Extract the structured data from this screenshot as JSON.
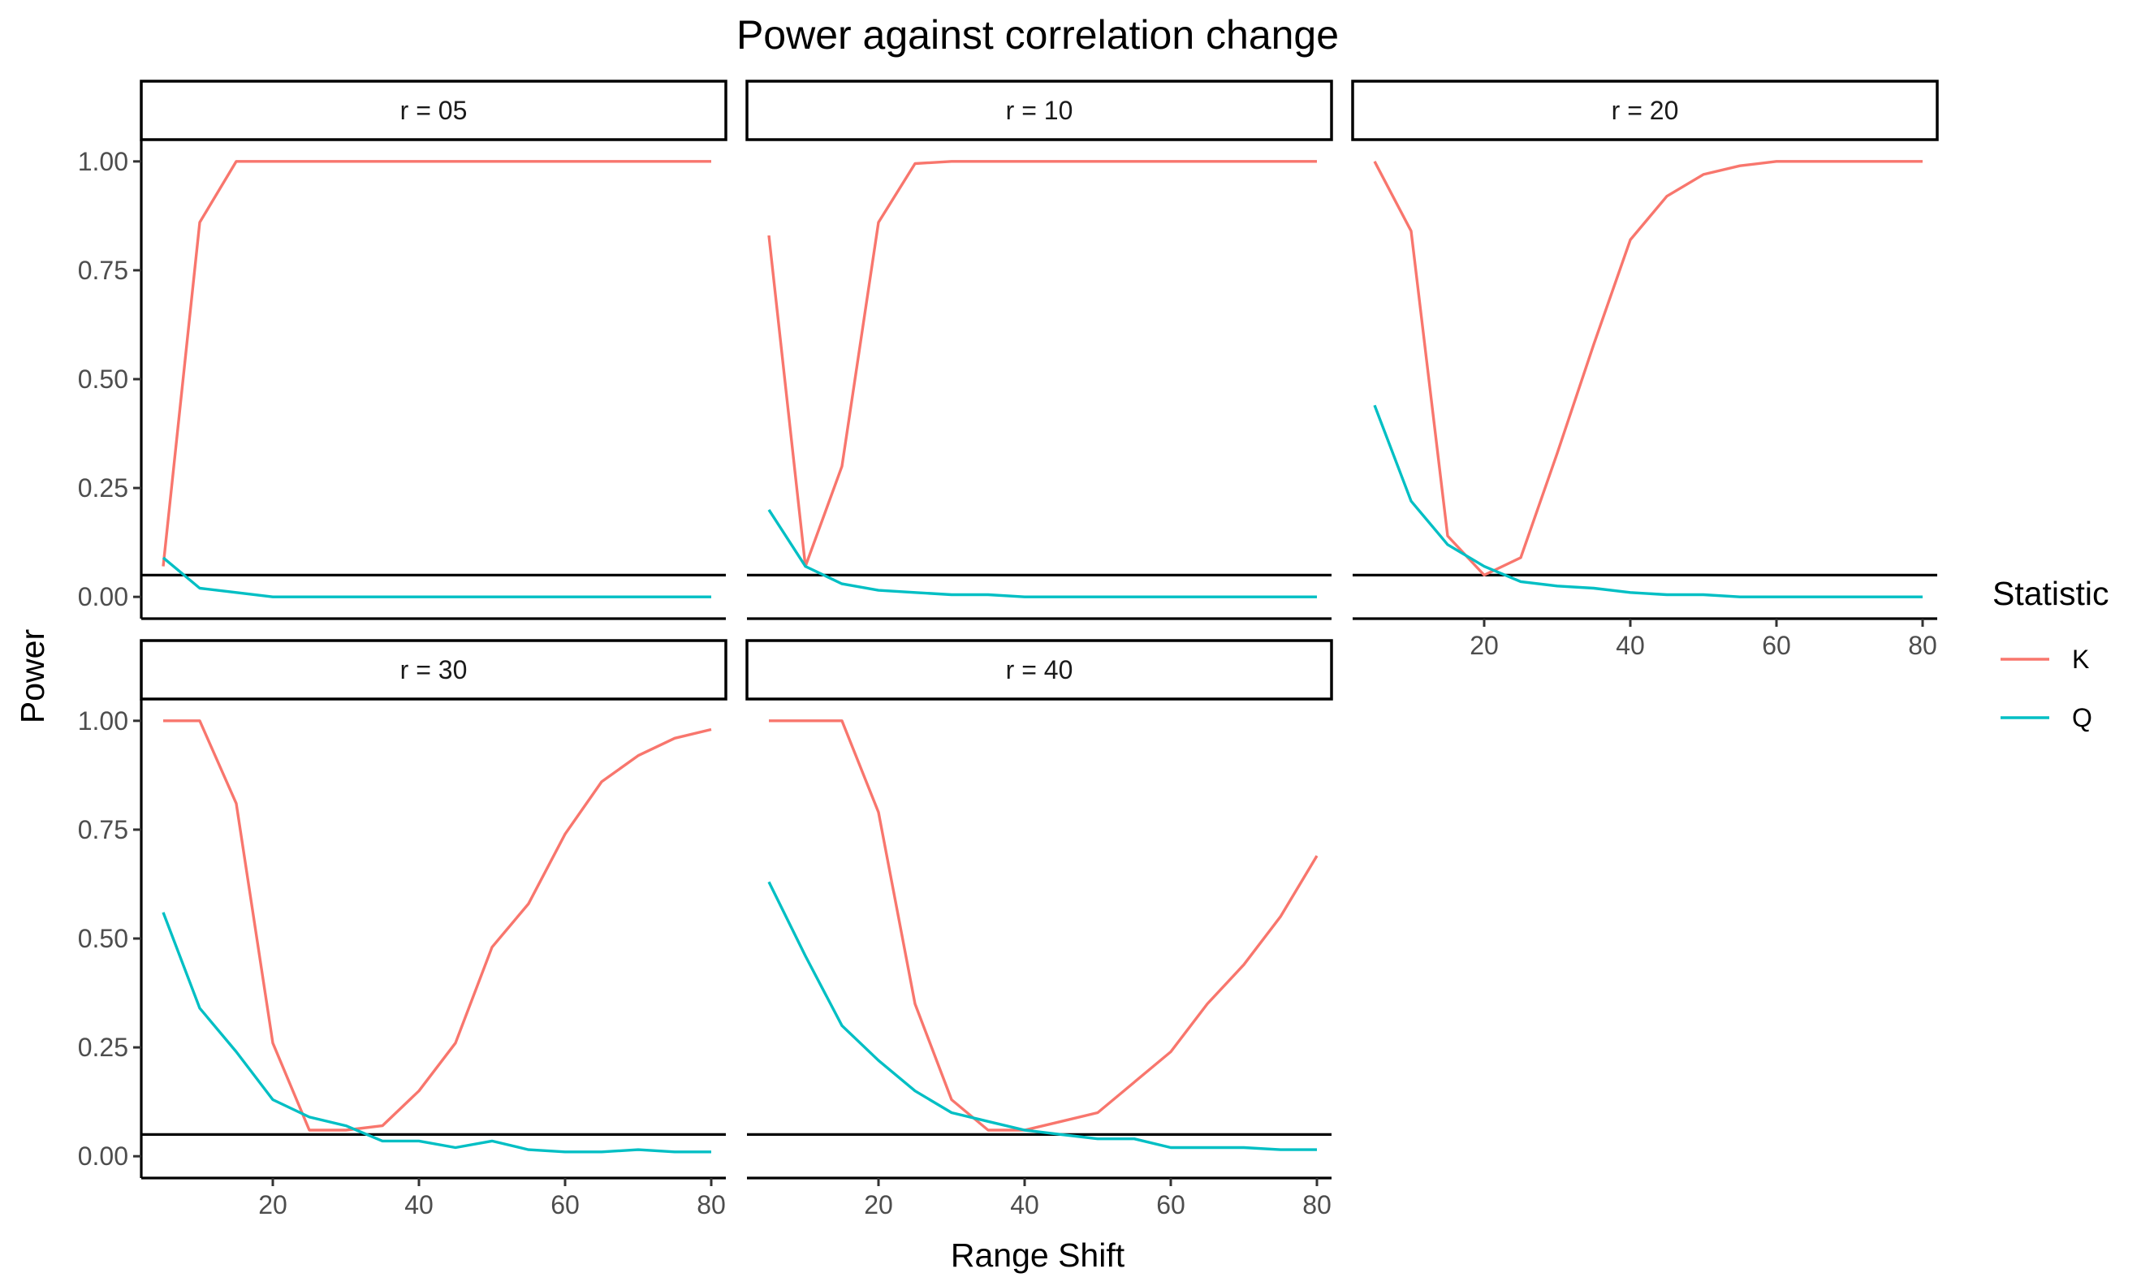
{
  "chart_data": {
    "type": "line",
    "title": "Power against correlation change",
    "xlabel": "Range Shift",
    "ylabel": "Power",
    "xlim": [
      2,
      82
    ],
    "ylim": [
      -0.05,
      1.05
    ],
    "x_ticks": [
      20,
      40,
      60,
      80
    ],
    "y_ticks": [
      0,
      0.25,
      0.5,
      0.75,
      1
    ],
    "y_tick_labels": [
      "0.00",
      "0.25",
      "0.50",
      "0.75",
      "1.00"
    ],
    "x_tick_labels": [
      "20",
      "40",
      "60",
      "80"
    ],
    "reference_line": 0.05,
    "grid": false,
    "legend": {
      "title": "Statistic",
      "position": "right",
      "entries": [
        {
          "label": "K",
          "color": "#F8766D"
        },
        {
          "label": "Q",
          "color": "#00BFC4"
        }
      ]
    },
    "x": [
      5,
      10,
      15,
      20,
      25,
      30,
      35,
      40,
      45,
      50,
      55,
      60,
      65,
      70,
      75,
      80
    ],
    "panels": [
      {
        "label": "r = 05",
        "series": [
          {
            "name": "K",
            "color": "#F8766D",
            "values": [
              0.07,
              0.86,
              1.0,
              1.0,
              1.0,
              1.0,
              1.0,
              1.0,
              1.0,
              1.0,
              1.0,
              1.0,
              1.0,
              1.0,
              1.0,
              1.0
            ]
          },
          {
            "name": "Q",
            "color": "#00BFC4",
            "values": [
              0.09,
              0.02,
              0.01,
              0.0,
              0.0,
              0.0,
              0.0,
              0.0,
              0.0,
              0.0,
              0.0,
              0.0,
              0.0,
              0.0,
              0.0,
              0.0
            ]
          }
        ]
      },
      {
        "label": "r = 10",
        "series": [
          {
            "name": "K",
            "color": "#F8766D",
            "values": [
              0.83,
              0.07,
              0.3,
              0.86,
              0.995,
              1.0,
              1.0,
              1.0,
              1.0,
              1.0,
              1.0,
              1.0,
              1.0,
              1.0,
              1.0,
              1.0
            ]
          },
          {
            "name": "Q",
            "color": "#00BFC4",
            "values": [
              0.2,
              0.07,
              0.03,
              0.015,
              0.01,
              0.005,
              0.005,
              0.0,
              0.0,
              0.0,
              0.0,
              0.0,
              0.0,
              0.0,
              0.0,
              0.0
            ]
          }
        ]
      },
      {
        "label": "r = 20",
        "series": [
          {
            "name": "K",
            "color": "#F8766D",
            "values": [
              1.0,
              0.84,
              0.14,
              0.05,
              0.09,
              0.33,
              0.58,
              0.82,
              0.92,
              0.97,
              0.99,
              1.0,
              1.0,
              1.0,
              1.0,
              1.0
            ]
          },
          {
            "name": "Q",
            "color": "#00BFC4",
            "values": [
              0.44,
              0.22,
              0.12,
              0.07,
              0.035,
              0.025,
              0.02,
              0.01,
              0.005,
              0.005,
              0.0,
              0.0,
              0.0,
              0.0,
              0.0,
              0.0
            ]
          }
        ]
      },
      {
        "label": "r = 30",
        "series": [
          {
            "name": "K",
            "color": "#F8766D",
            "values": [
              1.0,
              1.0,
              0.81,
              0.26,
              0.06,
              0.06,
              0.07,
              0.15,
              0.26,
              0.48,
              0.58,
              0.74,
              0.86,
              0.92,
              0.96,
              0.98
            ]
          },
          {
            "name": "Q",
            "color": "#00BFC4",
            "values": [
              0.56,
              0.34,
              0.24,
              0.13,
              0.09,
              0.07,
              0.035,
              0.035,
              0.02,
              0.035,
              0.015,
              0.01,
              0.01,
              0.015,
              0.01,
              0.01
            ]
          }
        ]
      },
      {
        "label": "r = 40",
        "series": [
          {
            "name": "K",
            "color": "#F8766D",
            "values": [
              1.0,
              1.0,
              1.0,
              0.79,
              0.35,
              0.13,
              0.06,
              0.06,
              0.08,
              0.1,
              0.17,
              0.24,
              0.35,
              0.44,
              0.55,
              0.69
            ]
          },
          {
            "name": "Q",
            "color": "#00BFC4",
            "values": [
              0.63,
              0.46,
              0.3,
              0.22,
              0.15,
              0.1,
              0.08,
              0.06,
              0.05,
              0.04,
              0.04,
              0.02,
              0.02,
              0.02,
              0.015,
              0.015
            ]
          }
        ]
      }
    ]
  }
}
